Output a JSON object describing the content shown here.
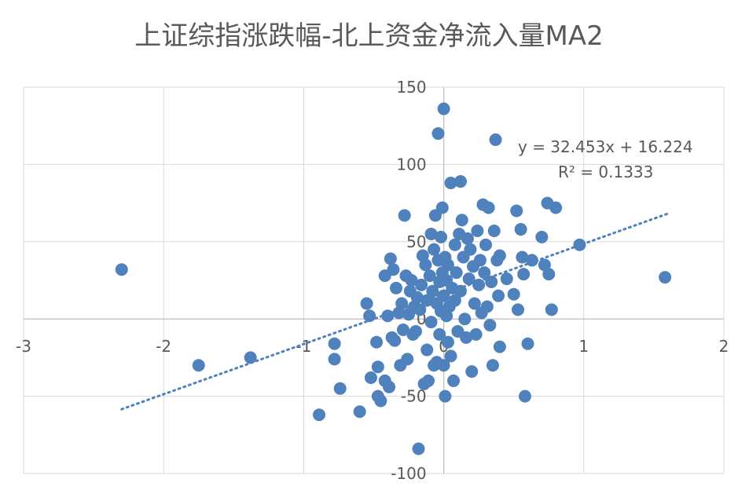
{
  "chart_data": {
    "type": "scatter",
    "title": "上证综指涨跌幅-北上资金净流入量MA2",
    "xlim": [
      -3,
      2
    ],
    "ylim": [
      -100,
      150
    ],
    "x_ticks": [
      "-3",
      "-2",
      "-1",
      "0",
      "1",
      "2"
    ],
    "y_ticks": [
      "-100",
      "-50",
      "0",
      "50",
      "100",
      "150"
    ],
    "grid": true,
    "marker_color": "#4f81bd",
    "trendline": {
      "type": "linear",
      "slope": 32.453,
      "intercept": 16.224,
      "x_range": [
        -2.3,
        1.6
      ],
      "style": "dotted",
      "color": "#4f81bd",
      "equation_label": "y = 32.453x + 16.224",
      "r2_label": "R² = 0.1333"
    },
    "points": [
      [
        -2.3,
        32
      ],
      [
        -1.75,
        -30
      ],
      [
        -1.38,
        -25
      ],
      [
        -0.89,
        -62
      ],
      [
        -0.78,
        -16
      ],
      [
        -0.78,
        -26
      ],
      [
        -0.74,
        -45
      ],
      [
        -0.6,
        -60
      ],
      [
        -0.55,
        10
      ],
      [
        -0.53,
        2
      ],
      [
        -0.52,
        -38
      ],
      [
        -0.48,
        -15
      ],
      [
        -0.47,
        -50
      ],
      [
        -0.47,
        -31
      ],
      [
        -0.45,
        -53
      ],
      [
        -0.42,
        28
      ],
      [
        -0.42,
        -40
      ],
      [
        -0.4,
        2
      ],
      [
        -0.39,
        -44
      ],
      [
        -0.38,
        39
      ],
      [
        -0.37,
        -12
      ],
      [
        -0.36,
        32
      ],
      [
        -0.35,
        -14
      ],
      [
        -0.34,
        20
      ],
      [
        -0.32,
        4
      ],
      [
        -0.31,
        -30
      ],
      [
        -0.3,
        10
      ],
      [
        -0.29,
        -7
      ],
      [
        -0.28,
        67
      ],
      [
        -0.27,
        28
      ],
      [
        -0.26,
        -26
      ],
      [
        -0.25,
        3
      ],
      [
        -0.24,
        18
      ],
      [
        -0.23,
        25
      ],
      [
        -0.22,
        -10
      ],
      [
        -0.21,
        8
      ],
      [
        -0.2,
        -8
      ],
      [
        -0.19,
        14
      ],
      [
        -0.18,
        -84
      ],
      [
        -0.17,
        6
      ],
      [
        -0.16,
        22
      ],
      [
        -0.15,
        41
      ],
      [
        -0.14,
        -42
      ],
      [
        -0.13,
        35
      ],
      [
        -0.12,
        12
      ],
      [
        -0.12,
        -20
      ],
      [
        -0.11,
        -40
      ],
      [
        -0.1,
        28
      ],
      [
        -0.09,
        55
      ],
      [
        -0.09,
        -2
      ],
      [
        -0.08,
        18
      ],
      [
        -0.07,
        -30
      ],
      [
        -0.07,
        45
      ],
      [
        -0.06,
        67
      ],
      [
        -0.05,
        10
      ],
      [
        -0.05,
        -28
      ],
      [
        -0.04,
        120
      ],
      [
        -0.04,
        38
      ],
      [
        -0.03,
        24
      ],
      [
        -0.03,
        -10
      ],
      [
        -0.02,
        53
      ],
      [
        -0.02,
        5
      ],
      [
        -0.01,
        72
      ],
      [
        -0.01,
        30
      ],
      [
        0.0,
        136
      ],
      [
        0.0,
        -30
      ],
      [
        0.0,
        15
      ],
      [
        0.01,
        40
      ],
      [
        0.01,
        -50
      ],
      [
        0.02,
        25
      ],
      [
        0.02,
        2
      ],
      [
        0.03,
        -15
      ],
      [
        0.03,
        35
      ],
      [
        0.04,
        8
      ],
      [
        0.05,
        88
      ],
      [
        0.05,
        -24
      ],
      [
        0.06,
        20
      ],
      [
        0.07,
        -40
      ],
      [
        0.08,
        48
      ],
      [
        0.08,
        12
      ],
      [
        0.09,
        30
      ],
      [
        0.1,
        -8
      ],
      [
        0.11,
        55
      ],
      [
        0.12,
        89
      ],
      [
        0.12,
        18
      ],
      [
        0.13,
        64
      ],
      [
        0.14,
        40
      ],
      [
        0.15,
        0
      ],
      [
        0.16,
        -12
      ],
      [
        0.17,
        52
      ],
      [
        0.18,
        26
      ],
      [
        0.19,
        45
      ],
      [
        0.2,
        -34
      ],
      [
        0.21,
        34
      ],
      [
        0.22,
        10
      ],
      [
        0.23,
        -10
      ],
      [
        0.24,
        57
      ],
      [
        0.25,
        22
      ],
      [
        0.26,
        38
      ],
      [
        0.27,
        4
      ],
      [
        0.28,
        74
      ],
      [
        0.29,
        30
      ],
      [
        0.3,
        48
      ],
      [
        0.31,
        8
      ],
      [
        0.32,
        72
      ],
      [
        0.33,
        -4
      ],
      [
        0.34,
        24
      ],
      [
        0.35,
        -30
      ],
      [
        0.36,
        57
      ],
      [
        0.37,
        116
      ],
      [
        0.38,
        38
      ],
      [
        0.39,
        15
      ],
      [
        0.4,
        41
      ],
      [
        0.4,
        -18
      ],
      [
        0.45,
        26
      ],
      [
        0.5,
        16
      ],
      [
        0.52,
        70
      ],
      [
        0.53,
        6
      ],
      [
        0.55,
        58
      ],
      [
        0.56,
        40
      ],
      [
        0.57,
        29
      ],
      [
        0.58,
        -50
      ],
      [
        0.6,
        -16
      ],
      [
        0.63,
        38
      ],
      [
        0.7,
        53
      ],
      [
        0.72,
        35
      ],
      [
        0.74,
        75
      ],
      [
        0.75,
        29
      ],
      [
        0.77,
        6
      ],
      [
        0.8,
        72
      ],
      [
        0.97,
        48
      ],
      [
        1.58,
        27
      ]
    ]
  }
}
